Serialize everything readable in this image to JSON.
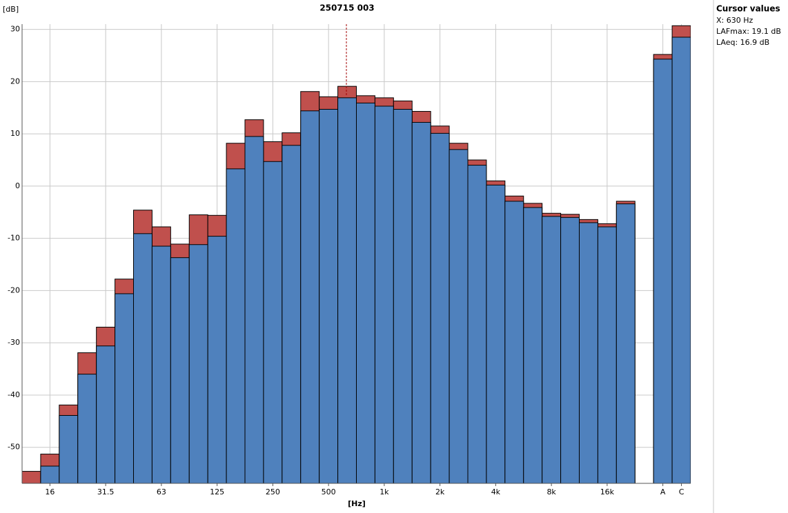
{
  "chart_data": {
    "type": "bar",
    "title": "250715 003",
    "y_label": "[dB]",
    "x_label": "[Hz]",
    "categories": [
      null,
      "16",
      null,
      null,
      "31.5",
      null,
      null,
      "63",
      null,
      null,
      "125",
      null,
      null,
      "250",
      null,
      null,
      "500",
      null,
      null,
      "1k",
      null,
      null,
      "2k",
      null,
      null,
      "4k",
      null,
      null,
      "8k",
      null,
      null,
      "16k",
      null,
      null,
      "A",
      "C"
    ],
    "series": [
      {
        "color": "#c0504d",
        "values": [
          -54.6,
          -51.3,
          -41.9,
          -31.9,
          -27.0,
          -17.8,
          -4.6,
          -7.8,
          -11.1,
          -5.5,
          -5.6,
          8.2,
          12.7,
          8.5,
          10.2,
          18.1,
          17.1,
          19.1,
          17.3,
          16.9,
          16.3,
          14.3,
          11.5,
          8.2,
          5.0,
          1.0,
          -1.9,
          -3.3,
          -5.2,
          -5.4,
          -6.4,
          -7.2,
          -2.9,
          null,
          25.2,
          30.7
        ]
      },
      {
        "color": "#4f81bd",
        "values": [
          -58,
          -53.6,
          -43.9,
          -36.0,
          -30.6,
          -20.6,
          -9.1,
          -11.5,
          -13.7,
          -11.2,
          -9.6,
          3.3,
          9.5,
          4.7,
          7.8,
          14.4,
          14.7,
          16.9,
          15.9,
          15.3,
          14.7,
          12.2,
          10.1,
          7.0,
          4.0,
          0.2,
          -2.9,
          -4.1,
          -5.8,
          -6.0,
          -7.0,
          -7.8,
          -3.4,
          null,
          24.3,
          28.5
        ]
      }
    ],
    "ylim": [
      -56.9,
      31
    ],
    "yticks": [
      -50,
      -40,
      -30,
      -20,
      -10,
      0,
      10,
      20,
      30
    ],
    "grid": true,
    "cursor_panel": {
      "title": "Cursor values",
      "entries": [
        {
          "text": "X: 630 Hz",
          "color": "#4f81bd"
        },
        {
          "text": "LAFmax: 19.1 dB",
          "color": "#c0504d"
        },
        {
          "text": "LAeq: 16.9 dB",
          "color": "#4f81bd"
        }
      ]
    }
  }
}
